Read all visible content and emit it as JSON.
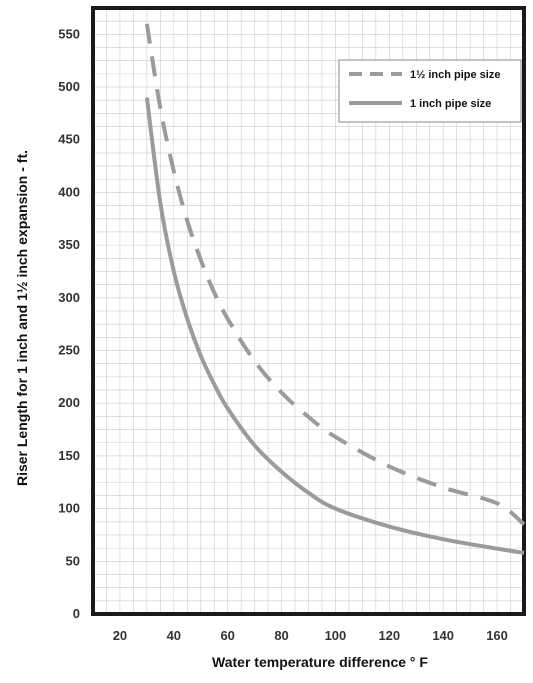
{
  "chart_data": {
    "type": "line",
    "title": "",
    "xlabel": "Water temperature difference ° F",
    "ylabel": "Riser Length for 1 inch and 1½ inch expansion - ft.",
    "xlim": [
      10,
      170
    ],
    "ylim": [
      0,
      575
    ],
    "x_ticks": [
      "20",
      "40",
      "60",
      "80",
      "100",
      "120",
      "140",
      "160"
    ],
    "y_ticks": [
      "0",
      "50",
      "100",
      "150",
      "200",
      "250",
      "300",
      "350",
      "400",
      "450",
      "500",
      "550"
    ],
    "grid": true,
    "legend_position": "top-right",
    "series": [
      {
        "name": "1½ inch pipe size",
        "style": "dashed",
        "color": "#9b9b9b",
        "x": [
          30,
          35,
          40,
          45,
          50,
          55,
          60,
          70,
          80,
          90,
          100,
          120,
          140,
          160,
          170
        ],
        "y": [
          560,
          480,
          420,
          373,
          336,
          305,
          280,
          240,
          210,
          187,
          168,
          140,
          120,
          105,
          85
        ]
      },
      {
        "name": "1 inch pipe size",
        "style": "solid",
        "color": "#9b9b9b",
        "x": [
          30,
          35,
          40,
          45,
          50,
          55,
          60,
          70,
          80,
          90,
          100,
          120,
          140,
          160,
          170
        ],
        "y": [
          490,
          390,
          325,
          280,
          245,
          218,
          195,
          160,
          135,
          115,
          100,
          83,
          71,
          62,
          58
        ]
      }
    ]
  },
  "colors": {
    "background": "#ffffff",
    "plot_border": "#1a1a1a",
    "grid": "#cccccc",
    "series_line": "#9b9b9b"
  }
}
